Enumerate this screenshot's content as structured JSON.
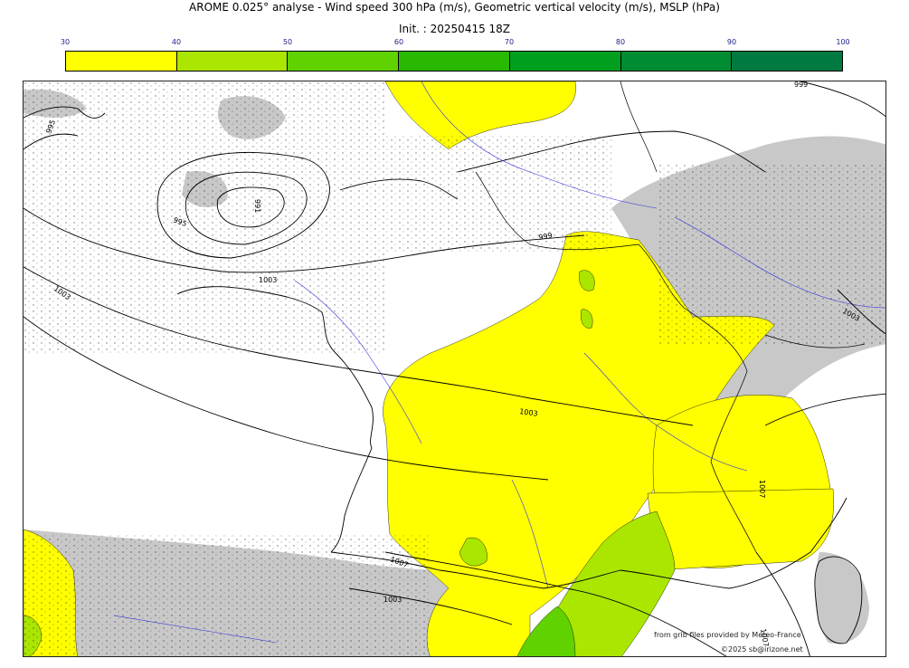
{
  "header": {
    "title": "AROME 0.025° analyse - Wind speed 300 hPa (m/s), Geometric vertical velocity (m/s), MSLP (hPa)",
    "init": "Init. : 20250415 18Z"
  },
  "legend": {
    "ticks": [
      "30",
      "40",
      "50",
      "60",
      "70",
      "80",
      "90",
      "100"
    ],
    "colors": [
      "#ffff00",
      "#aae600",
      "#5fd200",
      "#28b900",
      "#00a01e",
      "#008c32",
      "#007a40"
    ]
  },
  "map": {
    "isobar_labels": [
      "995",
      "991",
      "995",
      "999",
      "999",
      "1003",
      "1003",
      "1003",
      "1007",
      "1007",
      "1003",
      "1007",
      "1003"
    ]
  },
  "credits": {
    "source": "from grib files provided by Meteo-France",
    "copyright": "©2025 sb@irizone.net"
  }
}
